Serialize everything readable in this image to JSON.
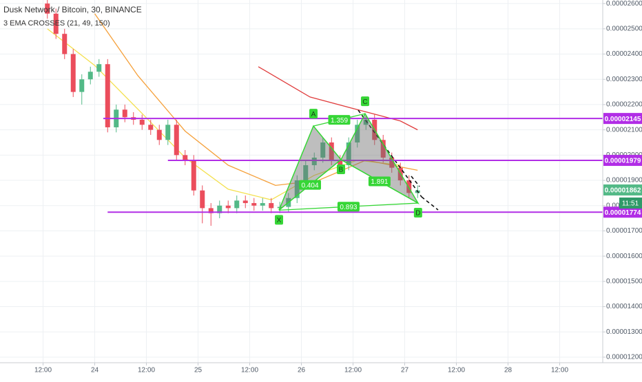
{
  "chart_data": {
    "type": "candlestick",
    "title": "Dusk Network / Bitcoin, 30, BINANCE",
    "subtitle": "3 EMA CROSSES (21, 49, 150)",
    "up_color": "#53b987",
    "down_color": "#eb4d5c",
    "grid": true,
    "x": [
      13,
      15,
      17,
      19,
      21,
      23,
      25,
      27,
      29,
      31,
      33,
      35,
      37,
      39,
      41,
      43,
      45,
      47,
      49,
      51,
      53,
      55,
      57,
      59,
      61,
      63,
      65,
      67,
      69,
      71,
      73,
      75,
      77,
      79,
      81,
      83,
      85,
      87,
      89,
      91,
      93,
      95,
      97,
      99
    ],
    "open": [
      2.6e-05,
      2.56e-05,
      2.48e-05,
      2.4e-05,
      2.25e-05,
      2.3e-05,
      2.33e-05,
      2.36e-05,
      2.11e-05,
      2.18e-05,
      2.15e-05,
      2.14e-05,
      2.12e-05,
      2.1e-05,
      2.06e-05,
      2.12e-05,
      2e-05,
      1.98e-05,
      1.86e-05,
      1.79e-05,
      1.77e-05,
      1.8e-05,
      1.79e-05,
      1.82e-05,
      1.81e-05,
      1.8e-05,
      1.81e-05,
      1.79e-05,
      1.795e-05,
      1.83e-05,
      1.9e-05,
      1.96e-05,
      1.99e-05,
      2.05e-05,
      1.98e-05,
      1.96e-05,
      2.05e-05,
      2.12e-05,
      2.14e-05,
      2.06e-05,
      1.99e-05,
      1.95e-05,
      1.9e-05,
      1.85e-05
    ],
    "high": [
      2.62e-05,
      2.58e-05,
      2.5e-05,
      2.42e-05,
      2.32e-05,
      2.35e-05,
      2.38e-05,
      2.38e-05,
      2.2e-05,
      2.2e-05,
      2.17e-05,
      2.16e-05,
      2.14e-05,
      2.12e-05,
      2.14e-05,
      2.14e-05,
      2.02e-05,
      2e-05,
      1.88e-05,
      1.81e-05,
      1.82e-05,
      1.82e-05,
      1.84e-05,
      1.84e-05,
      1.83e-05,
      1.83e-05,
      1.83e-05,
      1.815e-05,
      1.85e-05,
      1.92e-05,
      1.98e-05,
      2.01e-05,
      2.07e-05,
      2.07e-05,
      2e-05,
      2.07e-05,
      2.14e-05,
      2.16e-05,
      2.16e-05,
      2.08e-05,
      2.01e-05,
      1.97e-05,
      1.92e-05,
      1.88e-05
    ],
    "low": [
      2.54e-05,
      2.46e-05,
      2.38e-05,
      2.23e-05,
      2.2e-05,
      2.28e-05,
      2.31e-05,
      2.09e-05,
      2.09e-05,
      2.13e-05,
      2.12e-05,
      2.1e-05,
      2.08e-05,
      2.04e-05,
      2.04e-05,
      1.98e-05,
      1.96e-05,
      1.84e-05,
      1.73e-05,
      1.72e-05,
      1.75e-05,
      1.77e-05,
      1.77e-05,
      1.79e-05,
      1.78e-05,
      1.78e-05,
      1.77e-05,
      1.77e-05,
      1.775e-05,
      1.81e-05,
      1.88e-05,
      1.94e-05,
      1.97e-05,
      1.96e-05,
      1.94e-05,
      1.94e-05,
      2.03e-05,
      2.1e-05,
      2.04e-05,
      1.97e-05,
      1.93e-05,
      1.88e-05,
      1.83e-05,
      1.83e-05
    ],
    "close": [
      2.56e-05,
      2.48e-05,
      2.4e-05,
      2.25e-05,
      2.3e-05,
      2.33e-05,
      2.36e-05,
      2.11e-05,
      2.18e-05,
      2.15e-05,
      2.14e-05,
      2.12e-05,
      2.1e-05,
      2.06e-05,
      2.12e-05,
      2e-05,
      1.98e-05,
      1.86e-05,
      1.79e-05,
      1.77e-05,
      1.8e-05,
      1.79e-05,
      1.82e-05,
      1.81e-05,
      1.8e-05,
      1.81e-05,
      1.79e-05,
      1.795e-05,
      1.83e-05,
      1.9e-05,
      1.96e-05,
      1.99e-05,
      2.05e-05,
      1.98e-05,
      1.96e-05,
      2.05e-05,
      2.12e-05,
      2.14e-05,
      2.06e-05,
      1.99e-05,
      1.95e-05,
      1.9e-05,
      1.85e-05,
      1.86e-05
    ],
    "lines": [
      {
        "color": "#f4e04d",
        "x": [
          13,
          24,
          35,
          45,
          55,
          65,
          75,
          85,
          95
        ],
        "values": [
          2.5e-05,
          2.355e-05,
          2.165e-05,
          1.99e-05,
          1.865e-05,
          1.823e-05,
          1.92e-05,
          1.98e-05,
          1.96e-05
        ]
      },
      {
        "color": "#f5a03a",
        "x": [
          24,
          34,
          45,
          55,
          66,
          76,
          87,
          99
        ],
        "values": [
          2.56e-05,
          2.315e-05,
          2.095e-05,
          1.96e-05,
          1.88e-05,
          1.9e-05,
          1.98e-05,
          1.94e-05
        ]
      },
      {
        "color": "#e03c3c",
        "x": [
          62,
          74,
          85,
          95,
          99
        ],
        "values": [
          2.35e-05,
          2.23e-05,
          2.18e-05,
          2.135e-05,
          2.1e-05
        ]
      }
    ],
    "levels": [
      {
        "value": 2.145e-05,
        "x": 26,
        "color": "#b12de6"
      },
      {
        "value": 1.979e-05,
        "x": 41,
        "color": "#b12de6"
      },
      {
        "value": 1.774e-05,
        "x": 27,
        "color": "#b12de6"
      }
    ],
    "last_price": 1.862e-05,
    "countdown": "11:51",
    "pattern": {
      "color": "#36d636",
      "points": [
        {
          "label": "X",
          "x": 66.8,
          "y": 1.782e-05
        },
        {
          "label": "A",
          "x": 74.8,
          "y": 2.115e-05
        },
        {
          "label": "B",
          "x": 81.2,
          "y": 1.982e-05
        },
        {
          "label": "C",
          "x": 86.8,
          "y": 2.164e-05
        },
        {
          "label": "D",
          "x": 99.1,
          "y": 1.81e-05
        }
      ],
      "ratios": [
        1.359,
        0.404,
        1.891,
        0.893
      ]
    },
    "xlim": [
      2,
      142
    ],
    "ylim": [
      1.178e-05,
      2.614e-05
    ],
    "xticks": [
      {
        "value": 12,
        "label": "12:00"
      },
      24,
      {
        "value": 36,
        "label": "12:00"
      },
      {
        "value": 48,
        "label": "25"
      },
      {
        "value": 60,
        "label": "12:00"
      },
      {
        "value": 72,
        "label": "26"
      },
      {
        "value": 84,
        "label": "12:00"
      },
      {
        "value": 96,
        "label": "27"
      },
      {
        "value": 108,
        "label": "12:00"
      },
      {
        "value": 120,
        "label": "28"
      },
      {
        "value": 132,
        "label": "12:00"
      }
    ],
    "yticks": [
      {
        "value": 2.6e-05,
        "label": "0.00002600"
      },
      {
        "value": 2.5e-05,
        "label": "0.00002500"
      },
      {
        "value": 2.4e-05,
        "label": "0.00002400"
      },
      {
        "value": 2.3e-05,
        "label": "0.00002300"
      },
      {
        "value": 2.2e-05,
        "label": "0.00002200"
      },
      {
        "value": 2.1e-05,
        "label": "0.00002100"
      },
      {
        "value": 2e-05,
        "label": "0.00002000"
      },
      {
        "value": 1.9e-05,
        "label": "0.00001900"
      },
      {
        "value": 1.8e-05,
        "label": "0.00001800"
      },
      {
        "value": 1.7e-05,
        "label": "0.00001700"
      },
      {
        "value": 1.6e-05,
        "label": "0.00001600"
      },
      {
        "value": 1.5e-05,
        "label": "0.00001500"
      },
      {
        "value": 1.4e-05,
        "label": "0.00001400"
      },
      {
        "value": 1.3e-05,
        "label": "0.00001300"
      },
      {
        "value": 1.2e-05,
        "label": "0.00001200"
      }
    ]
  }
}
